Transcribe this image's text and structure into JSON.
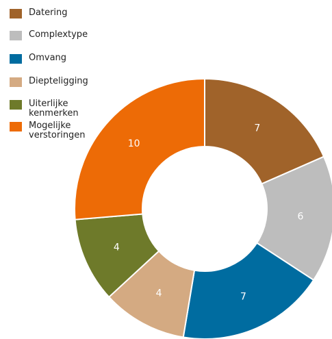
{
  "chart_data": {
    "type": "donut",
    "categories": [
      "Datering",
      "Complextype",
      "Omvang",
      "Diepteligging",
      "Uiterlijke kenmerken",
      "Mogelijke verstoringen"
    ],
    "values": [
      7,
      6,
      7,
      4,
      4,
      10
    ],
    "colors": [
      "#a0632a",
      "#bdbdbd",
      "#006ca0",
      "#d4aa82",
      "#6e7a2a",
      "#ed6b06"
    ],
    "legend": "top-left"
  }
}
